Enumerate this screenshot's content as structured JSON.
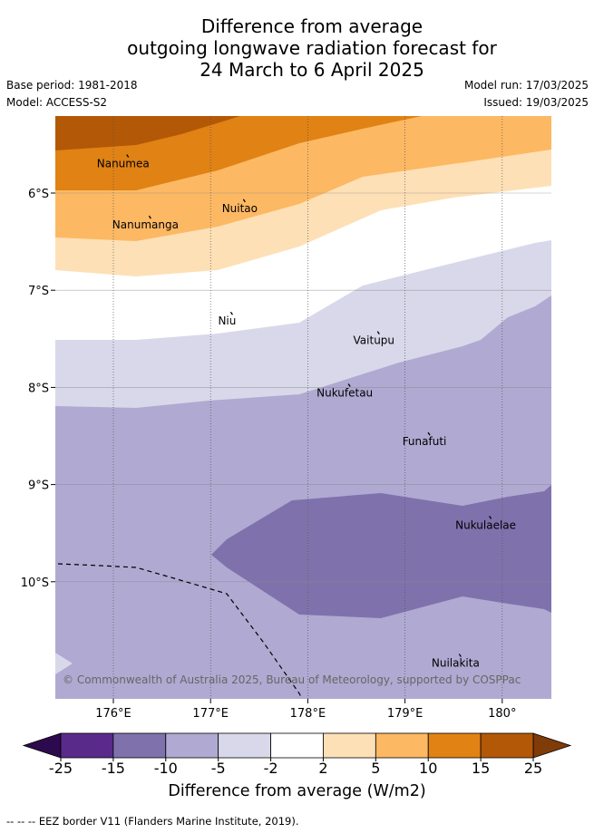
{
  "title": {
    "line1": "Difference from average",
    "line2": "outgoing longwave radiation forecast for",
    "line3": "24 March to 6 April 2025"
  },
  "meta": {
    "base_period": "Base period: 1981-2018",
    "model": "Model: ACCESS-S2",
    "model_run": "Model run: 17/03/2025",
    "issued": "Issued: 19/03/2025"
  },
  "map": {
    "lon_range": [
      175.45,
      180.5
    ],
    "lat_range": [
      -11.3,
      -5.3
    ],
    "lon_ticks": [
      {
        "value": 176,
        "label": "176°E"
      },
      {
        "value": 177,
        "label": "177°E"
      },
      {
        "value": 178,
        "label": "178°E"
      },
      {
        "value": 179,
        "label": "179°E"
      },
      {
        "value": 180,
        "label": "180°"
      }
    ],
    "lat_ticks": [
      {
        "value": -6,
        "label": "6°S"
      },
      {
        "value": -7,
        "label": "7°S"
      },
      {
        "value": -8,
        "label": "8°S"
      },
      {
        "value": -9,
        "label": "9°S"
      },
      {
        "value": -10,
        "label": "10°S"
      }
    ],
    "islands": [
      {
        "name": "Nanumea",
        "lon": 176.1,
        "lat": -5.66
      },
      {
        "name": "Nuitao",
        "lon": 177.3,
        "lat": -6.12
      },
      {
        "name": "Nanumanga",
        "lon": 176.33,
        "lat": -6.29
      },
      {
        "name": "Niu",
        "lon": 177.17,
        "lat": -7.28
      },
      {
        "name": "Vaitupu",
        "lon": 178.68,
        "lat": -7.48
      },
      {
        "name": "Nukufetau",
        "lon": 178.38,
        "lat": -8.02
      },
      {
        "name": "Funafuti",
        "lon": 179.2,
        "lat": -8.52
      },
      {
        "name": "Nukulaelae",
        "lon": 179.83,
        "lat": -9.38
      },
      {
        "name": "Nuilakita",
        "lon": 179.52,
        "lat": -10.8
      }
    ],
    "copyright": "© Commonwealth of Australia 2025, Bureau of Meteorology, supported by COSPPac"
  },
  "colorbar": {
    "title": "Difference from average (W/m2)",
    "tick_labels": [
      "-25",
      "-15",
      "-10",
      "-5",
      "-2",
      "2",
      "5",
      "10",
      "15",
      "25"
    ],
    "colors": {
      "below_min": "#2d0a4e",
      "bins": [
        "#5a2a8a",
        "#7f72ac",
        "#b0a9d1",
        "#d8d8ea",
        "#ffffff",
        "#fee0b6",
        "#fdb863",
        "#e08214",
        "#b35806"
      ],
      "above_max": "#7f3b08"
    }
  },
  "footer": {
    "legend_line_symbol": "-- -- --",
    "legend_text": "EEZ border V11 (Flanders Marine Institute, 2019)."
  }
}
